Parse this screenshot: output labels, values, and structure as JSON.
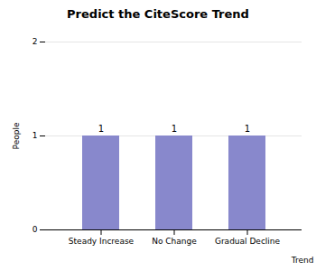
{
  "chart_data": {
    "type": "bar",
    "title": "Predict the CiteScore Trend",
    "categories": [
      "Steady Increase",
      "No Change",
      "Gradual Decline"
    ],
    "values": [
      1,
      1,
      1
    ],
    "xlabel": "Trend",
    "ylabel": "People",
    "color": "#8888cc",
    "ylim": [
      0,
      2
    ],
    "yticks": [
      0,
      1,
      2
    ],
    "grid": true,
    "data_labels": true
  }
}
